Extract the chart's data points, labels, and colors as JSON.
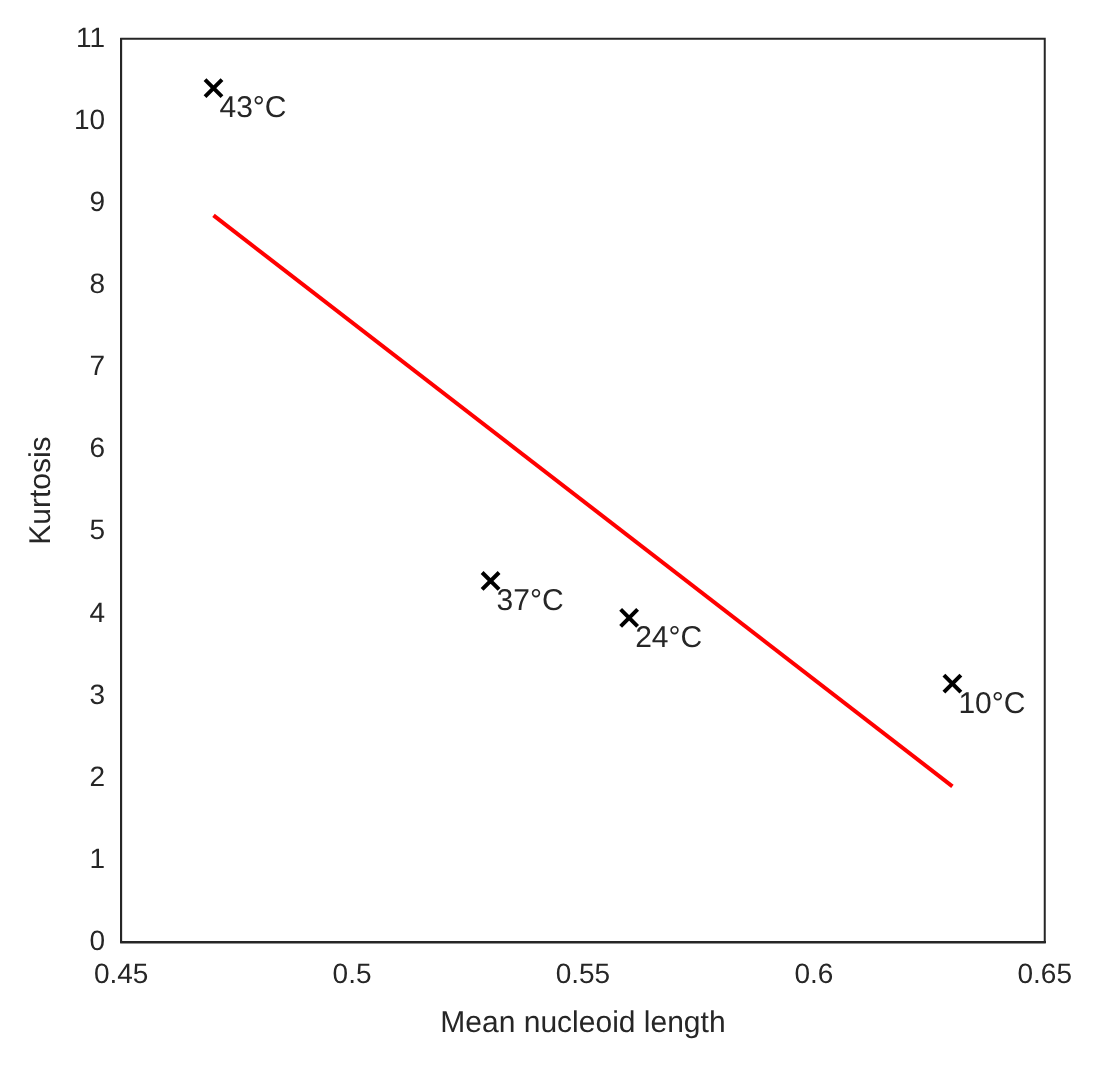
{
  "chart_data": {
    "type": "scatter",
    "xlabel": "Mean nucleoid length",
    "ylabel": "Kurtosis",
    "series": [
      {
        "type": "scatter",
        "color": "#000000",
        "marker": "cross",
        "x": [
          0.47,
          0.53,
          0.56,
          0.63
        ],
        "values": [
          10.4,
          4.4,
          3.95,
          3.15
        ]
      },
      {
        "type": "line",
        "color": "#ff0000",
        "marker": "none",
        "x": [
          0.47,
          0.63
        ],
        "values": [
          8.85,
          1.9
        ]
      }
    ],
    "annotations": [
      {
        "text": "43°C",
        "x": 0.47,
        "y": 10.4
      },
      {
        "text": "37°C",
        "x": 0.53,
        "y": 4.4
      },
      {
        "text": "24°C",
        "x": 0.56,
        "y": 3.95
      },
      {
        "text": "10°C",
        "x": 0.63,
        "y": 3.15
      }
    ],
    "xlim": [
      0.45,
      0.65
    ],
    "xticks": [
      0.45,
      0.5,
      0.55,
      0.6,
      0.65
    ],
    "ylim": [
      0,
      11
    ],
    "yticks": [
      0,
      1,
      2,
      3,
      4,
      5,
      6,
      7,
      8,
      9,
      10,
      11
    ],
    "grid": false,
    "legend": false
  }
}
